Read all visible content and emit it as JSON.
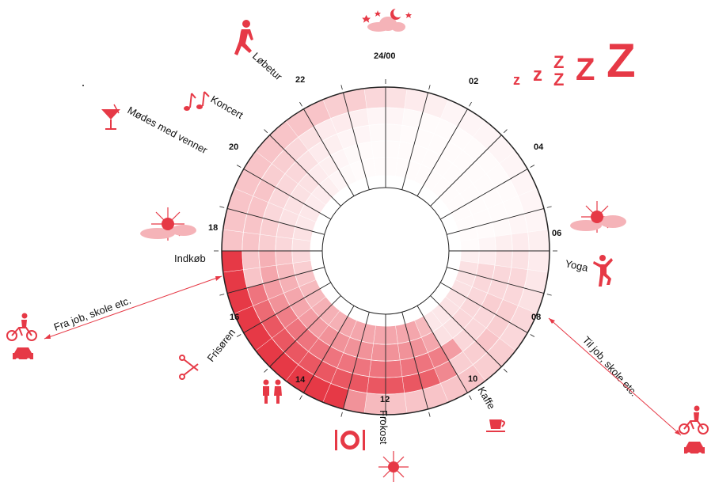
{
  "accent": "#e63946",
  "hour_labels": [
    "24/00",
    "02",
    "04",
    "06",
    "08",
    "10",
    "12",
    "14",
    "16",
    "18",
    "20",
    "22"
  ],
  "activities": {
    "running": "Løbetur",
    "concert": "Koncert",
    "meet_friends": "Mødes med venner",
    "shopping": "Indkøb",
    "from_work": "Fra job, skole etc.",
    "hairdresser": "Frisøren",
    "lunch": "Frokost",
    "coffee": "Kaffe",
    "to_work": "Til job, skole etc.",
    "yoga": "Yoga"
  },
  "sleep_letters": [
    "z",
    "z",
    "Z",
    "Z",
    "Z",
    "Z"
  ],
  "ring_intensity": [
    [
      0.15,
      0.1,
      0.08,
      0.05,
      0.05,
      0.05,
      0.05,
      0.05,
      0.05,
      0.05,
      0.05,
      0.08,
      0.1,
      0.12,
      0.15,
      0.2,
      0.2,
      0.25,
      0.25,
      0.3,
      0.3,
      0.3,
      0.3,
      0.3,
      0.35,
      0.55,
      1.0,
      1.0,
      1.0,
      1.0,
      1.0,
      1.0,
      1.0,
      1.0,
      1.0,
      1.0,
      0.3,
      0.3,
      0.3,
      0.3,
      0.3,
      0.3,
      0.3,
      0.3,
      0.3,
      0.25,
      0.25,
      0.2
    ],
    [
      0.05,
      0.03,
      0.02,
      0.02,
      0.02,
      0.02,
      0.02,
      0.02,
      0.02,
      0.02,
      0.05,
      0.1,
      0.15,
      0.2,
      0.2,
      0.25,
      0.25,
      0.3,
      0.25,
      0.25,
      0.6,
      0.8,
      0.85,
      0.85,
      0.85,
      0.85,
      0.85,
      0.85,
      0.85,
      0.85,
      0.85,
      0.85,
      0.75,
      0.7,
      0.3,
      0.3,
      0.3,
      0.3,
      0.3,
      0.3,
      0.25,
      0.25,
      0.2,
      0.15,
      0.1,
      0.1,
      0.08,
      0.05
    ],
    [
      0.03,
      0.02,
      0.02,
      0.02,
      0.02,
      0.02,
      0.02,
      0.02,
      0.02,
      0.02,
      0.03,
      0.08,
      0.15,
      0.2,
      0.2,
      0.25,
      0.2,
      0.2,
      0.2,
      0.5,
      0.65,
      0.7,
      0.7,
      0.7,
      0.7,
      0.7,
      0.7,
      0.7,
      0.7,
      0.7,
      0.7,
      0.65,
      0.55,
      0.5,
      0.45,
      0.4,
      0.25,
      0.25,
      0.2,
      0.2,
      0.2,
      0.2,
      0.15,
      0.1,
      0.08,
      0.05,
      0.05,
      0.03
    ],
    [
      0.02,
      0.02,
      0.02,
      0.02,
      0.02,
      0.02,
      0.02,
      0.02,
      0.02,
      0.02,
      0.02,
      0.05,
      0.1,
      0.2,
      0.2,
      0.2,
      0.2,
      0.2,
      0.15,
      0.15,
      0.45,
      0.55,
      0.55,
      0.55,
      0.55,
      0.55,
      0.55,
      0.55,
      0.55,
      0.5,
      0.5,
      0.45,
      0.45,
      0.4,
      0.35,
      0.3,
      0.2,
      0.2,
      0.15,
      0.15,
      0.15,
      0.15,
      0.1,
      0.08,
      0.05,
      0.03,
      0.02,
      0.02
    ],
    [
      0.02,
      0.02,
      0.02,
      0.02,
      0.02,
      0.02,
      0.02,
      0.02,
      0.02,
      0.02,
      0.02,
      0.02,
      0.08,
      0.15,
      0.15,
      0.15,
      0.15,
      0.15,
      0.12,
      0.12,
      0.35,
      0.45,
      0.45,
      0.45,
      0.45,
      0.45,
      0.45,
      0.45,
      0.4,
      0.4,
      0.4,
      0.35,
      0.35,
      0.3,
      0.25,
      0.2,
      0.15,
      0.15,
      0.12,
      0.12,
      0.1,
      0.1,
      0.08,
      0.05,
      0.03,
      0.02,
      0.02,
      0.02
    ]
  ]
}
